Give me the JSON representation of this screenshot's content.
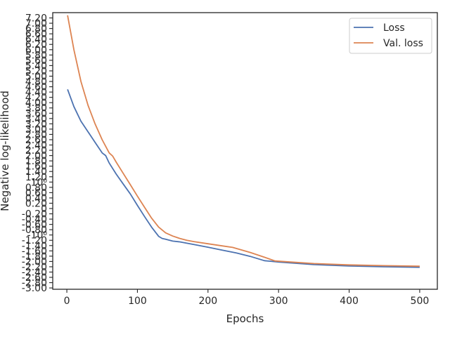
{
  "chart_data": {
    "type": "line",
    "xlabel": "Epochs",
    "ylabel": "Negative log-likelihood",
    "xlim": [
      -20,
      525
    ],
    "ylim": [
      -3.05,
      7.4
    ],
    "x_ticks": [
      0,
      100,
      200,
      300,
      400,
      500
    ],
    "x_tick_labels": [
      "0",
      "100",
      "200",
      "300",
      "400",
      "500"
    ],
    "y_tick_groups": [
      {
        "values": [
          -3.0,
          -2.8,
          -2.6,
          -2.4,
          -2.2
        ],
        "labels": [
          "-3.00",
          "-2.80",
          "-2.60",
          "-2.40",
          "-2.20"
        ]
      },
      {
        "values": [
          -2.0,
          -1.8,
          -1.6,
          -1.4,
          -1.2
        ],
        "labels": [
          "-2.00",
          "-1.80",
          "-1.60",
          "-1.40",
          "-1.20"
        ]
      },
      {
        "values": [
          -1.0
        ],
        "labels": [
          "-10⁰"
        ]
      },
      {
        "values": [
          -0.8,
          -0.6,
          -0.4,
          -0.2,
          0,
          0.2,
          0.4,
          0.6,
          0.8
        ],
        "labels": [
          "-0.80",
          "-0.60",
          "-0.40",
          "-0.20",
          "0",
          "0.20",
          "0.40",
          "0.60",
          "0.80"
        ]
      },
      {
        "values": [
          1.0
        ],
        "labels": [
          "10⁰"
        ]
      },
      {
        "values": [
          1.2,
          1.4,
          1.6,
          1.8,
          2.0
        ],
        "labels": [
          "1.20",
          "1.40",
          "1.60",
          "1.80",
          "2.00"
        ]
      },
      {
        "values": [
          2.2,
          2.4,
          2.6,
          2.8,
          3.0,
          3.2,
          3.4,
          3.6,
          3.8,
          4.0,
          4.2,
          4.4,
          4.6,
          4.8,
          5.0,
          5.2,
          5.4,
          5.6,
          5.8,
          6.0,
          6.2,
          6.4,
          6.6,
          6.8,
          7.0,
          7.2
        ],
        "labels": [
          "2.20",
          "2.40",
          "2.60",
          "2.80",
          "3.00",
          "3.20",
          "3.40",
          "3.60",
          "3.80",
          "4.00",
          "4.20",
          "4.40",
          "4.60",
          "4.80",
          "5.00",
          "5.20",
          "5.40",
          "5.60",
          "5.80",
          "6.00",
          "6.20",
          "6.40",
          "6.60",
          "6.80",
          "7.00",
          "7.20"
        ]
      }
    ],
    "y_scale_note": "symlog",
    "grid": false,
    "legend": "top-right",
    "series": [
      {
        "name": "Loss",
        "color": "#4c72b0",
        "x": [
          1,
          10,
          20,
          30,
          40,
          50,
          55,
          60,
          70,
          80,
          90,
          100,
          110,
          120,
          130,
          135,
          140,
          150,
          160,
          180,
          200,
          220,
          240,
          260,
          280,
          300,
          350,
          400,
          450,
          500
        ],
        "y": [
          4.5,
          3.85,
          3.3,
          2.9,
          2.5,
          2.1,
          2.0,
          1.72,
          1.3,
          0.92,
          0.55,
          0.12,
          -0.3,
          -0.7,
          -1.05,
          -1.13,
          -1.16,
          -1.23,
          -1.26,
          -1.36,
          -1.46,
          -1.57,
          -1.68,
          -1.81,
          -1.97,
          -2.02,
          -2.12,
          -2.17,
          -2.2,
          -2.22
        ]
      },
      {
        "name": "Val. loss",
        "color": "#dd8452",
        "x": [
          1,
          10,
          20,
          30,
          40,
          50,
          60,
          65,
          70,
          80,
          90,
          100,
          110,
          120,
          130,
          140,
          150,
          160,
          170,
          180,
          200,
          220,
          235,
          260,
          280,
          295,
          350,
          400,
          450,
          500
        ],
        "y": [
          7.3,
          6.0,
          4.8,
          3.9,
          3.2,
          2.6,
          2.1,
          1.98,
          1.75,
          1.32,
          0.9,
          0.47,
          0.05,
          -0.36,
          -0.7,
          -0.92,
          -1.04,
          -1.13,
          -1.2,
          -1.25,
          -1.33,
          -1.41,
          -1.47,
          -1.66,
          -1.84,
          -1.98,
          -2.08,
          -2.13,
          -2.16,
          -2.18
        ]
      }
    ]
  }
}
